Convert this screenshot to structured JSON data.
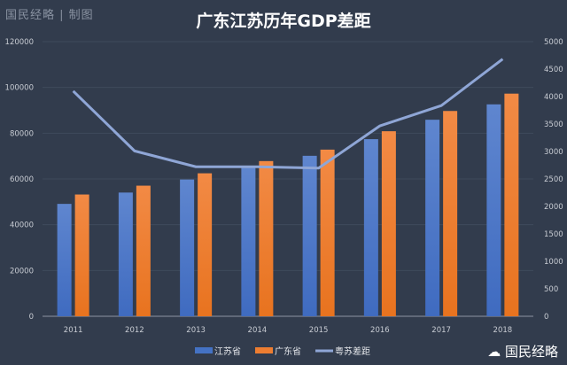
{
  "watermark": "国民经略 | 制图",
  "brand": "国民经略",
  "chart_data": {
    "type": "bar",
    "title": "广东江苏历年GDP差距",
    "categories": [
      "2011",
      "2012",
      "2013",
      "2014",
      "2015",
      "2016",
      "2017",
      "2018"
    ],
    "series": [
      {
        "name": "江苏省",
        "type": "bar",
        "axis": "left",
        "color": "#4472c4",
        "values": [
          49110,
          54058,
          59753,
          65088,
          70116,
          77388,
          85870,
          92595
        ]
      },
      {
        "name": "广东省",
        "type": "bar",
        "axis": "left",
        "color": "#ed7d31",
        "values": [
          53210,
          57068,
          62475,
          67810,
          72813,
          80855,
          89705,
          97278
        ]
      },
      {
        "name": "粤苏差距",
        "type": "line",
        "axis": "right",
        "color": "#8fa6d6",
        "values": [
          4100,
          3010,
          2722,
          2722,
          2697,
          3467,
          3835,
          4683
        ]
      }
    ],
    "ylim_left": [
      0,
      120000
    ],
    "yticks_left": [
      "0",
      "20000",
      "40000",
      "60000",
      "80000",
      "100000",
      "120000"
    ],
    "ylim_right": [
      0,
      5000
    ],
    "yticks_right": [
      "0",
      "500",
      "1000",
      "1500",
      "2000",
      "2500",
      "3000",
      "3500",
      "4000",
      "4500",
      "5000"
    ],
    "grid": true,
    "legend": "bottom"
  }
}
